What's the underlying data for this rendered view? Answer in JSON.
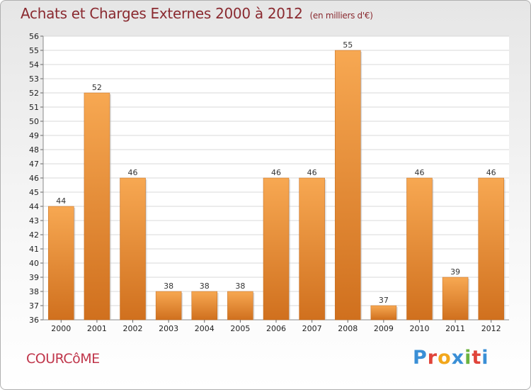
{
  "header": {
    "title": "Achats et Charges Externes 2000 à 2012",
    "unit": "(en milliers d'€)"
  },
  "footer": {
    "commune": "COURCôME",
    "logo": [
      "P",
      "r",
      "o",
      "x",
      "i",
      "t",
      "i"
    ]
  },
  "colors": {
    "bar_light": "#f7a852",
    "bar_dark": "#d0701e",
    "grid": "#d8d8d8",
    "title": "#8a2a30",
    "commune": "#c0364b"
  },
  "chart_data": {
    "type": "bar",
    "categories": [
      "2000",
      "2001",
      "2002",
      "2003",
      "2004",
      "2005",
      "2006",
      "2007",
      "2008",
      "2009",
      "2010",
      "2011",
      "2012"
    ],
    "values": [
      44,
      52,
      46,
      38,
      38,
      38,
      46,
      46,
      55,
      37,
      46,
      39,
      46
    ],
    "title": "Achats et Charges Externes 2000 à 2012",
    "ylim": [
      36,
      56
    ],
    "yticks_step": 1,
    "grid": true,
    "data_labels": true
  }
}
